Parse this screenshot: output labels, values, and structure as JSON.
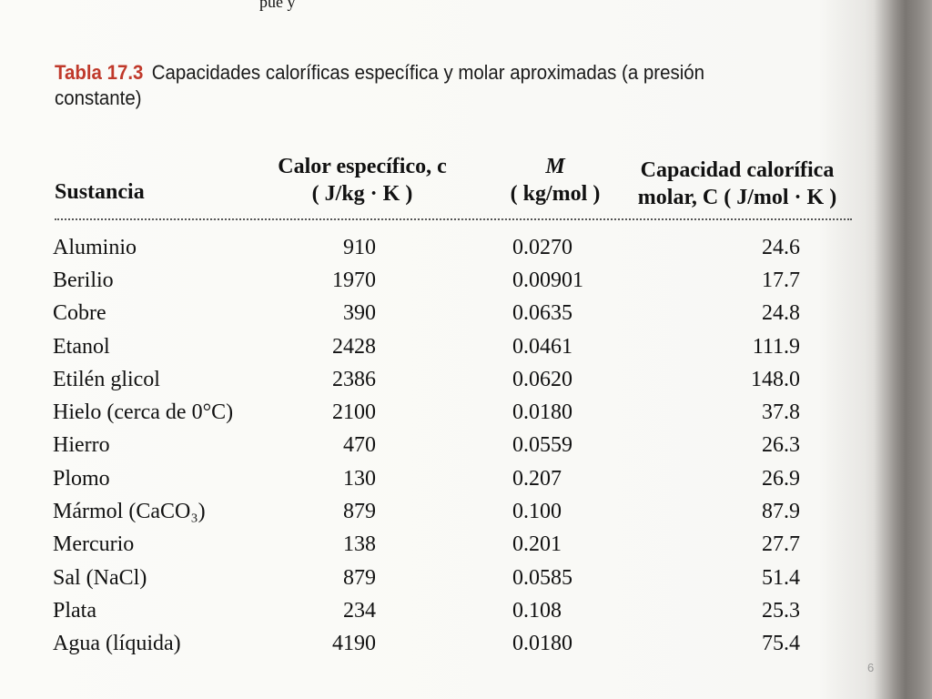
{
  "top_snippet": "pue        y",
  "caption": {
    "label": "Tabla 17.3",
    "text": "Capacidades caloríficas específica y molar aproximadas (a presión constante)"
  },
  "headers": {
    "substance": "Sustancia",
    "specific_heat_line1": "Calor específico, c",
    "specific_heat_line2": "( J/kg · K )",
    "molar_mass_line1": "M",
    "molar_mass_line2": "( kg/mol )",
    "molar_capacity_line1": "Capacidad calorífica",
    "molar_capacity_line2": "molar, C ( J/mol · K )"
  },
  "rows": [
    {
      "substance": "Aluminio",
      "c": "910",
      "M": "0.0270",
      "C": "24.6"
    },
    {
      "substance": "Berilio",
      "c": "1970",
      "M": "0.00901",
      "C": "17.7"
    },
    {
      "substance": "Cobre",
      "c": "390",
      "M": "0.0635",
      "C": "24.8"
    },
    {
      "substance": "Etanol",
      "c": "2428",
      "M": "0.0461",
      "C": "111.9"
    },
    {
      "substance": "Etilén glicol",
      "c": "2386",
      "M": "0.0620",
      "C": "148.0"
    },
    {
      "substance": "Hielo (cerca de 0°C)",
      "c": "2100",
      "M": "0.0180",
      "C": "37.8"
    },
    {
      "substance": "Hierro",
      "c": "470",
      "M": "0.0559",
      "C": "26.3"
    },
    {
      "substance": "Plomo",
      "c": "130",
      "M": "0.207",
      "C": "26.9"
    },
    {
      "substance": "Mármol (CaCO₃)",
      "c": "879",
      "M": "0.100",
      "C": "87.9"
    },
    {
      "substance": "Mercurio",
      "c": "138",
      "M": "0.201",
      "C": "27.7"
    },
    {
      "substance": "Sal (NaCl)",
      "c": "879",
      "M": "0.0585",
      "C": "51.4"
    },
    {
      "substance": "Plata",
      "c": "234",
      "M": "0.108",
      "C": "25.3"
    },
    {
      "substance": "Agua (líquida)",
      "c": "4190",
      "M": "0.0180",
      "C": "75.4"
    }
  ],
  "page_number": "6",
  "colors": {
    "caption_label": "#c0392b",
    "text": "#111111",
    "page_number": "#9a9a9a"
  }
}
